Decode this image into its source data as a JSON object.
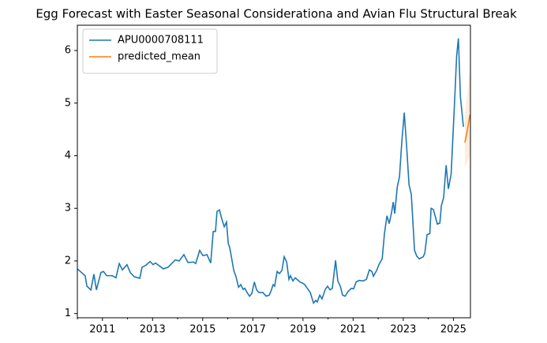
{
  "chart_data": {
    "type": "line",
    "title": "Egg Forecast with Easter Seasonal Considerationa and Avian Flu Structural Break",
    "xlim": [
      2010.0,
      2025.68
    ],
    "ylim": [
      0.92,
      6.48
    ],
    "xticks": [
      2011,
      2013,
      2015,
      2017,
      2019,
      2021,
      2023,
      2025
    ],
    "xminor_ticks": [
      2010,
      2012,
      2014,
      2016,
      2018,
      2020,
      2022,
      2024
    ],
    "yticks": [
      1,
      2,
      3,
      4,
      5,
      6
    ],
    "legend": "upper left",
    "series": [
      {
        "name": "APU0000708111",
        "color": "#1f77b4",
        "x": [
          2010.0,
          2010.31,
          2010.38,
          2010.54,
          2010.66,
          2010.76,
          2010.94,
          2011.04,
          2011.17,
          2011.39,
          2011.54,
          2011.67,
          2011.8,
          2011.98,
          2012.11,
          2012.27,
          2012.49,
          2012.58,
          2012.74,
          2012.9,
          2013.02,
          2013.12,
          2013.43,
          2013.62,
          2013.72,
          2013.91,
          2014.06,
          2014.25,
          2014.41,
          2014.63,
          2014.72,
          2014.88,
          2015.01,
          2015.17,
          2015.32,
          2015.42,
          2015.51,
          2015.57,
          2015.67,
          2015.76,
          2015.86,
          2015.95,
          2016.02,
          2016.08,
          2016.24,
          2016.33,
          2016.43,
          2016.52,
          2016.61,
          2016.68,
          2016.77,
          2016.87,
          2016.96,
          2017.06,
          2017.15,
          2017.24,
          2017.4,
          2017.53,
          2017.65,
          2017.72,
          2017.81,
          2017.87,
          2017.97,
          2018.06,
          2018.16,
          2018.25,
          2018.35,
          2018.44,
          2018.5,
          2018.6,
          2018.69,
          2018.88,
          2018.98,
          2019.07,
          2019.29,
          2019.42,
          2019.51,
          2019.57,
          2019.67,
          2019.76,
          2019.89,
          2019.98,
          2020.08,
          2020.17,
          2020.3,
          2020.39,
          2020.49,
          2020.58,
          2020.68,
          2020.8,
          2020.93,
          2021.02,
          2021.12,
          2021.24,
          2021.4,
          2021.53,
          2021.65,
          2021.75,
          2021.81,
          2021.94,
          2022.03,
          2022.16,
          2022.25,
          2022.35,
          2022.44,
          2022.54,
          2022.6,
          2022.66,
          2022.76,
          2022.85,
          2022.94,
          2023.04,
          2023.13,
          2023.23,
          2023.32,
          2023.39,
          2023.45,
          2023.54,
          2023.64,
          2023.8,
          2023.86,
          2023.95,
          2024.06,
          2024.11,
          2024.2,
          2024.36,
          2024.46,
          2024.52,
          2024.61,
          2024.71,
          2024.8,
          2024.91,
          2024.96,
          2025.04,
          2025.13,
          2025.2,
          2025.28,
          2025.4
        ],
        "values": [
          1.85,
          1.72,
          1.52,
          1.45,
          1.75,
          1.45,
          1.78,
          1.8,
          1.72,
          1.72,
          1.68,
          1.95,
          1.83,
          1.93,
          1.78,
          1.7,
          1.67,
          1.88,
          1.92,
          1.99,
          1.93,
          1.96,
          1.85,
          1.88,
          1.93,
          2.02,
          2.0,
          2.12,
          1.97,
          1.98,
          1.95,
          2.2,
          2.1,
          2.12,
          1.96,
          2.56,
          2.56,
          2.94,
          2.97,
          2.8,
          2.65,
          2.74,
          2.33,
          2.25,
          1.82,
          1.7,
          1.5,
          1.55,
          1.46,
          1.48,
          1.4,
          1.33,
          1.38,
          1.6,
          1.45,
          1.4,
          1.4,
          1.33,
          1.35,
          1.42,
          1.55,
          1.52,
          1.8,
          1.76,
          1.82,
          2.08,
          1.98,
          1.65,
          1.72,
          1.62,
          1.68,
          1.6,
          1.58,
          1.55,
          1.4,
          1.2,
          1.25,
          1.22,
          1.35,
          1.28,
          1.46,
          1.52,
          1.45,
          1.48,
          2.01,
          1.62,
          1.52,
          1.35,
          1.33,
          1.42,
          1.48,
          1.47,
          1.6,
          1.63,
          1.62,
          1.65,
          1.83,
          1.8,
          1.71,
          1.82,
          1.93,
          2.04,
          2.52,
          2.86,
          2.71,
          2.94,
          3.12,
          2.9,
          3.4,
          3.6,
          4.25,
          4.82,
          4.21,
          3.45,
          3.27,
          2.7,
          2.2,
          2.09,
          2.04,
          2.08,
          2.15,
          2.5,
          2.52,
          3.0,
          2.98,
          2.7,
          2.72,
          3.05,
          3.2,
          3.82,
          3.37,
          3.65,
          4.15,
          4.95,
          5.9,
          6.23,
          5.12,
          4.55
        ]
      },
      {
        "name": "predicted_mean",
        "color": "#ff7f0e",
        "x": [
          2025.46,
          2025.56,
          2025.66
        ],
        "values": [
          4.25,
          4.5,
          4.78
        ],
        "ci_lower": [
          3.78,
          3.9,
          4.0
        ],
        "ci_upper": [
          4.75,
          5.2,
          5.65
        ]
      }
    ]
  }
}
